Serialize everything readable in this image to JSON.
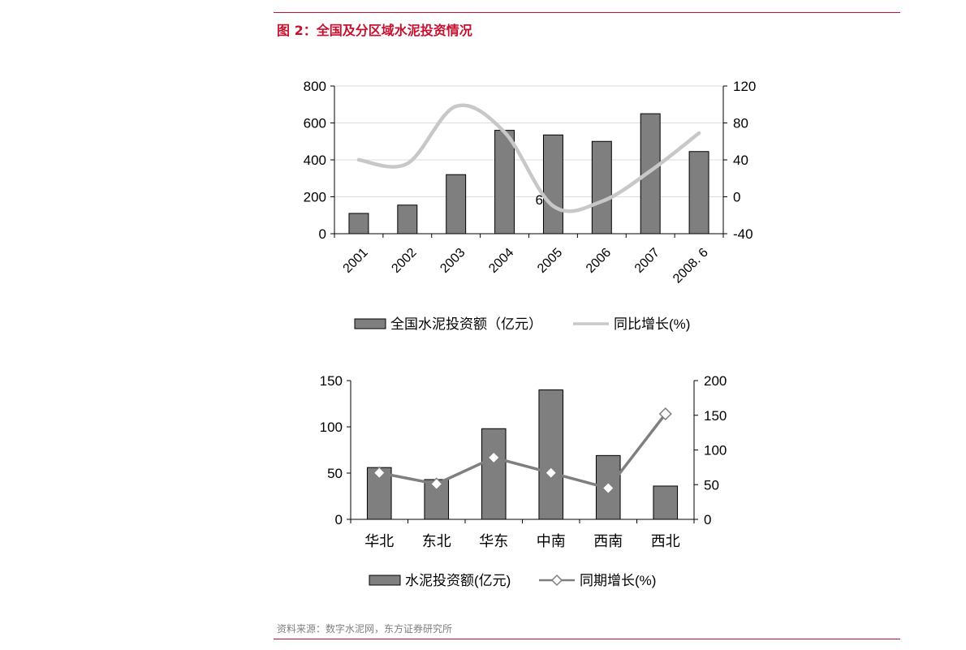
{
  "figure": {
    "title": "图 2：全国及分区域水泥投资情况",
    "source": "资料来源：数字水泥网，东方证券研究所"
  },
  "colors": {
    "accent": "#c8102e",
    "bar": "#7f7f7f",
    "line1": "#c8c8c8",
    "line2": "#7f7f7f"
  },
  "chart_data": [
    {
      "type": "bar",
      "categories": [
        "2001",
        "2002",
        "2003",
        "2004",
        "2005",
        "2006",
        "2007",
        "2008. 6"
      ],
      "series": [
        {
          "name": "全国水泥投资额（亿元）",
          "type": "bar",
          "axis": "left",
          "values": [
            110,
            155,
            320,
            560,
            535,
            500,
            650,
            445
          ]
        },
        {
          "name": "同比增长(%)",
          "type": "line",
          "axis": "right",
          "smooth": true,
          "values": [
            40,
            36,
            98,
            70,
            -10,
            -5,
            28,
            69
          ]
        }
      ],
      "ylim_left": [
        0,
        800
      ],
      "yticks_left": [
        "800",
        "600",
        "400",
        "200",
        "0"
      ],
      "ylim_right": [
        -40,
        120
      ],
      "yticks_right": [
        "120",
        "80",
        "40",
        "0",
        "-40"
      ],
      "annotation": "6",
      "grid": "horizontal",
      "legend": "bottom"
    },
    {
      "type": "bar",
      "categories": [
        "华北",
        "东北",
        "华东",
        "中南",
        "西南",
        "西北"
      ],
      "series": [
        {
          "name": "水泥投资额(亿元)",
          "type": "bar",
          "axis": "left",
          "values": [
            56,
            43,
            98,
            140,
            69,
            36
          ]
        },
        {
          "name": "同期增长(%)",
          "type": "line",
          "axis": "right",
          "marker": "diamond",
          "values": [
            67,
            51,
            89,
            67,
            45,
            152
          ]
        }
      ],
      "ylim_left": [
        0,
        150
      ],
      "yticks_left": [
        "150",
        "100",
        "50",
        "0"
      ],
      "ylim_right": [
        0,
        200
      ],
      "yticks_right": [
        "200",
        "150",
        "100",
        "50",
        "0"
      ],
      "grid": "none",
      "legend": "bottom"
    }
  ]
}
